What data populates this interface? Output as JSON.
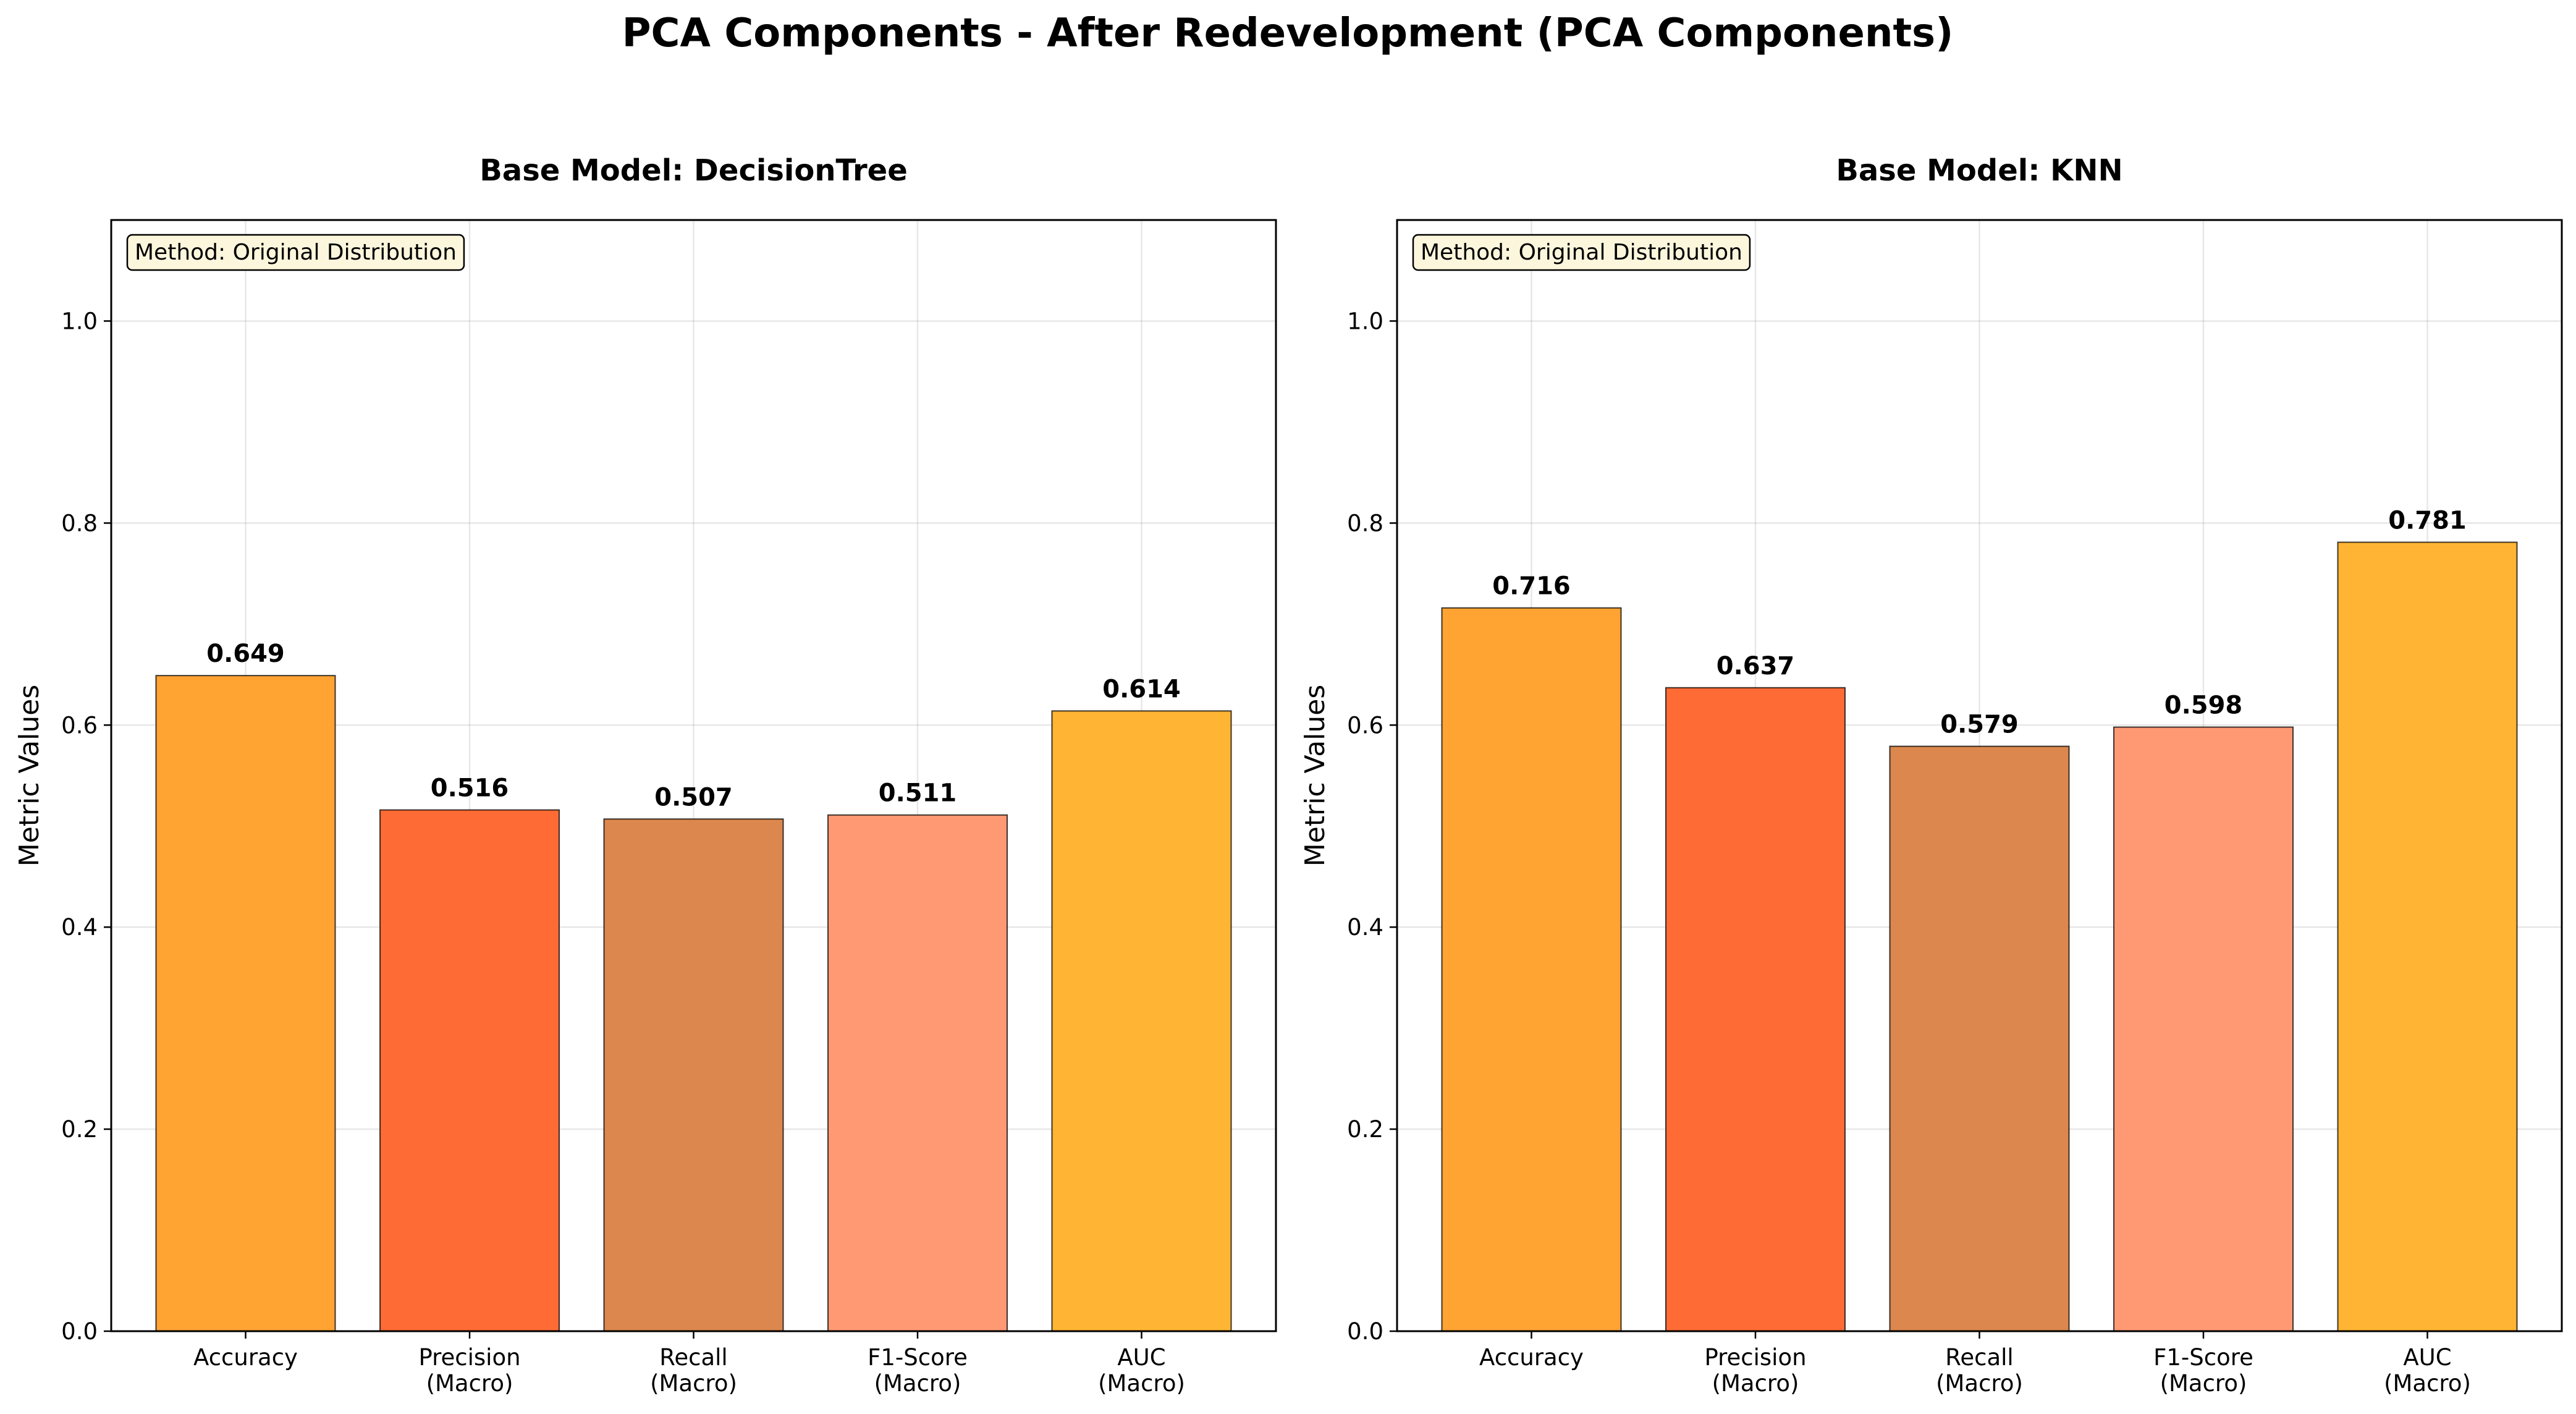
{
  "figure": {
    "title": "PCA Components - After Redevelopment (PCA Components)"
  },
  "chart_data": [
    {
      "type": "bar",
      "title": "Base Model: DecisionTree",
      "xlabel": "",
      "ylabel": "Metric Values",
      "ylim": [
        0,
        1.1
      ],
      "yticks": [
        0.0,
        0.2,
        0.4,
        0.6,
        0.8,
        1.0
      ],
      "grid": true,
      "annotation": "Method: Original Distribution",
      "categories": [
        [
          "Accuracy"
        ],
        [
          "Precision",
          "(Macro)"
        ],
        [
          "Recall",
          "(Macro)"
        ],
        [
          "F1-Score",
          "(Macro)"
        ],
        [
          "AUC",
          "(Macro)"
        ]
      ],
      "values": [
        0.649,
        0.516,
        0.507,
        0.511,
        0.614
      ],
      "colors": [
        "#ffa333",
        "#ff6b35",
        "#dc874d",
        "#ff9973",
        "#ffb533"
      ]
    },
    {
      "type": "bar",
      "title": "Base Model: KNN",
      "xlabel": "",
      "ylabel": "Metric Values",
      "ylim": [
        0,
        1.1
      ],
      "yticks": [
        0.0,
        0.2,
        0.4,
        0.6,
        0.8,
        1.0
      ],
      "grid": true,
      "annotation": "Method: Original Distribution",
      "categories": [
        [
          "Accuracy"
        ],
        [
          "Precision",
          "(Macro)"
        ],
        [
          "Recall",
          "(Macro)"
        ],
        [
          "F1-Score",
          "(Macro)"
        ],
        [
          "AUC",
          "(Macro)"
        ]
      ],
      "values": [
        0.716,
        0.637,
        0.579,
        0.598,
        0.781
      ],
      "colors": [
        "#ffa333",
        "#ff6b35",
        "#dc874d",
        "#ff9973",
        "#ffb533"
      ]
    }
  ]
}
